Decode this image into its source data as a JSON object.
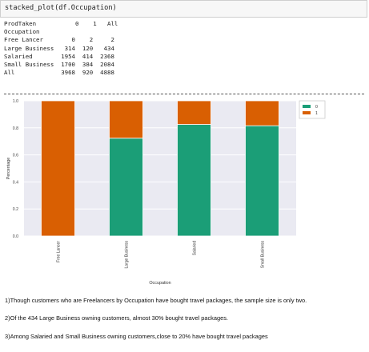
{
  "code": {
    "text": "stacked_plot(df.Occupation)"
  },
  "crosstab": {
    "lines": [
      "ProdTaken           0    1   All",
      "Occupation",
      "Free Lancer        0    2     2",
      "Large Business   314  120   434",
      "Salaried        1954  414  2368",
      "Small Business  1700  384  2084",
      "All             3968  920  4888"
    ]
  },
  "chart_data": {
    "type": "bar",
    "stacked": true,
    "categories": [
      "Free Lancer",
      "Large Business",
      "Salaried",
      "Small Business"
    ],
    "series": [
      {
        "name": "0",
        "color": "#1b9e77",
        "values": [
          0.0,
          0.7235,
          0.8252,
          0.8157
        ]
      },
      {
        "name": "1",
        "color": "#d95f02",
        "values": [
          1.0,
          0.2765,
          0.1748,
          0.1843
        ]
      }
    ],
    "xlabel": "Occupation",
    "ylabel": "Percentage",
    "ylim": [
      0,
      1
    ],
    "yticks": [
      "0.0",
      "0.2",
      "0.4",
      "0.6",
      "0.8",
      "1.0"
    ],
    "grid": true,
    "legend": "top-right",
    "background": "#eaeaf2"
  },
  "notes": [
    "1)Though customers who are Freelancers by Occupation have bought travel packages, the sample size is only two.",
    "2)Of the 434 Large Business owning customers, almost 30% bought travel packages.",
    "3)Among Salaried and Small Business owning customers,close to 20% have bought travel packages"
  ]
}
